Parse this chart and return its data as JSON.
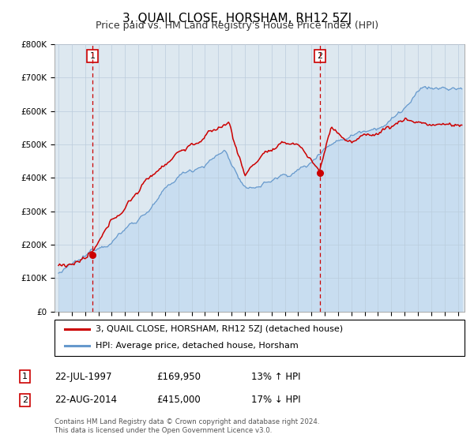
{
  "title": "3, QUAIL CLOSE, HORSHAM, RH12 5ZJ",
  "subtitle": "Price paid vs. HM Land Registry's House Price Index (HPI)",
  "ylim": [
    0,
    800000
  ],
  "yticks": [
    0,
    100000,
    200000,
    300000,
    400000,
    500000,
    600000,
    700000,
    800000
  ],
  "ytick_labels": [
    "£0",
    "£100K",
    "£200K",
    "£300K",
    "£400K",
    "£500K",
    "£600K",
    "£700K",
    "£800K"
  ],
  "xlim_start": 1994.7,
  "xlim_end": 2025.5,
  "sale1_date": 1997.55,
  "sale1_price": 169950,
  "sale2_date": 2014.64,
  "sale2_price": 415000,
  "sale1_label": "1",
  "sale2_label": "2",
  "line_color_red": "#cc0000",
  "line_color_blue": "#6699cc",
  "fill_color_blue": "#c8ddf0",
  "marker_color": "#cc0000",
  "dashed_line_color": "#cc0000",
  "background_color": "#dde8f0",
  "grid_color": "#bbccdd",
  "legend_label_red": "3, QUAIL CLOSE, HORSHAM, RH12 5ZJ (detached house)",
  "legend_label_blue": "HPI: Average price, detached house, Horsham",
  "table_row1": [
    "1",
    "22-JUL-1997",
    "£169,950",
    "13% ↑ HPI"
  ],
  "table_row2": [
    "2",
    "22-AUG-2014",
    "£415,000",
    "17% ↓ HPI"
  ],
  "footnote1": "Contains HM Land Registry data © Crown copyright and database right 2024.",
  "footnote2": "This data is licensed under the Open Government Licence v3.0.",
  "title_fontsize": 11,
  "subtitle_fontsize": 9,
  "tick_fontsize": 7.5
}
